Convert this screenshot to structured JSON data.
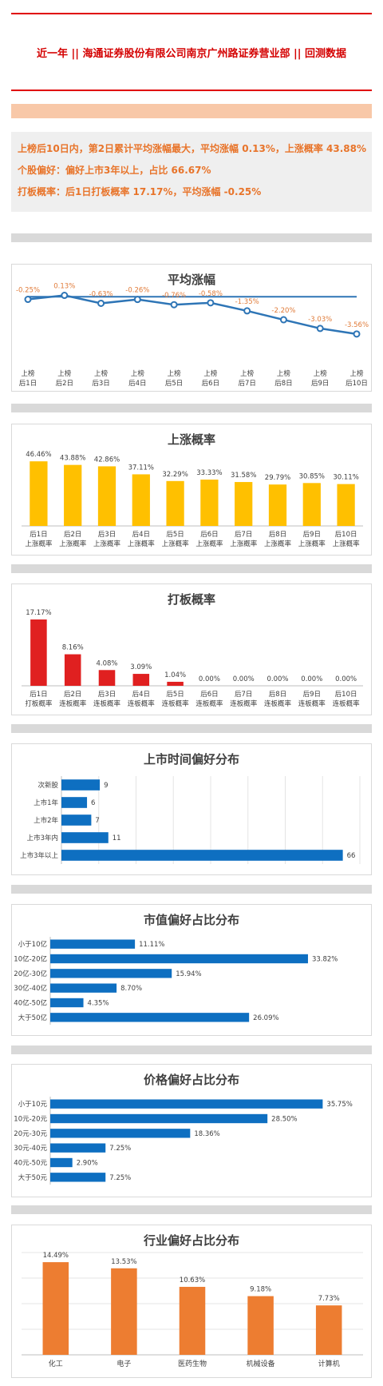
{
  "header": {
    "title": "近一年  ||  海通证券股份有限公司南京广州路证券营业部  ||  回测数据"
  },
  "summary": {
    "line1": "上榜后10日内，第2日累计平均涨幅最大，平均涨幅 0.13%，上涨概率 43.88%",
    "line2": "个股偏好：偏好上市3年以上，占比 66.67%",
    "line3": "打板概率：后1日打板概率 17.17%，平均涨幅 -0.25%"
  },
  "colors": {
    "header_red": "#e00000",
    "summary_orange": "#e8742a",
    "line_blue": "#2e75b6",
    "bar_yellow": "#ffc000",
    "bar_red": "#e02020",
    "bar_blue": "#0e6fc1",
    "bar_orange": "#ed7d31",
    "label_orange": "#e07b39"
  },
  "chart_data": [
    {
      "id": "avg",
      "type": "line",
      "title": "平均涨幅",
      "categories": [
        [
          "上榜",
          "后1日"
        ],
        [
          "上榜",
          "后2日"
        ],
        [
          "上榜",
          "后3日"
        ],
        [
          "上榜",
          "后4日"
        ],
        [
          "上榜",
          "后5日"
        ],
        [
          "上榜",
          "后6日"
        ],
        [
          "上榜",
          "后7日"
        ],
        [
          "上榜",
          "后8日"
        ],
        [
          "上榜",
          "后9日"
        ],
        [
          "上榜",
          "后10日"
        ]
      ],
      "values": [
        -0.25,
        0.13,
        -0.63,
        -0.26,
        -0.76,
        -0.58,
        -1.35,
        -2.2,
        -3.03,
        -3.56
      ],
      "labels": [
        "-0.25%",
        "0.13%",
        "-0.63%",
        "-0.26%",
        "-0.76%",
        "-0.58%",
        "-1.35%",
        "-2.20%",
        "-3.03%",
        "-3.56%"
      ],
      "ylim": [
        -3.8,
        0.4
      ]
    },
    {
      "id": "up",
      "type": "bar",
      "title": "上涨概率",
      "categories": [
        [
          "后1日",
          "上涨概率"
        ],
        [
          "后2日",
          "上涨概率"
        ],
        [
          "后3日",
          "上涨概率"
        ],
        [
          "后4日",
          "上涨概率"
        ],
        [
          "后5日",
          "上涨概率"
        ],
        [
          "后6日",
          "上涨概率"
        ],
        [
          "后7日",
          "上涨概率"
        ],
        [
          "后8日",
          "上涨概率"
        ],
        [
          "后9日",
          "上涨概率"
        ],
        [
          "后10日",
          "上涨概率"
        ]
      ],
      "values": [
        46.46,
        43.88,
        42.86,
        37.11,
        32.29,
        33.33,
        31.58,
        29.79,
        30.85,
        30.11
      ],
      "labels": [
        "46.46%",
        "43.88%",
        "42.86%",
        "37.11%",
        "32.29%",
        "33.33%",
        "31.58%",
        "29.79%",
        "30.85%",
        "30.11%"
      ],
      "ylim": [
        0,
        50
      ]
    },
    {
      "id": "limit",
      "type": "bar",
      "title": "打板概率",
      "categories": [
        [
          "后1日",
          "打板概率"
        ],
        [
          "后2日",
          "连板概率"
        ],
        [
          "后3日",
          "连板概率"
        ],
        [
          "后4日",
          "连板概率"
        ],
        [
          "后5日",
          "连板概率"
        ],
        [
          "后6日",
          "连板概率"
        ],
        [
          "后7日",
          "连板概率"
        ],
        [
          "后8日",
          "连板概率"
        ],
        [
          "后9日",
          "连板概率"
        ],
        [
          "后10日",
          "连板概率"
        ]
      ],
      "values": [
        17.17,
        8.16,
        4.08,
        3.09,
        1.04,
        0,
        0,
        0,
        0,
        0
      ],
      "labels": [
        "17.17%",
        "8.16%",
        "4.08%",
        "3.09%",
        "1.04%",
        "0.00%",
        "0.00%",
        "0.00%",
        "0.00%",
        "0.00%"
      ],
      "ylim": [
        0,
        18
      ]
    },
    {
      "id": "listing",
      "type": "hbar",
      "title": "上市时间偏好分布",
      "categories": [
        "次新股",
        "上市1年",
        "上市2年",
        "上市3年内",
        "上市3年以上"
      ],
      "values": [
        9,
        6,
        7,
        11,
        66
      ],
      "labels": [
        "9",
        "6",
        "7",
        "11",
        "66"
      ],
      "xlim": [
        0,
        70
      ],
      "grid": true
    },
    {
      "id": "mcap",
      "type": "hbar",
      "title": "市值偏好占比分布",
      "categories": [
        "小于10亿",
        "10亿-20亿",
        "20亿-30亿",
        "30亿-40亿",
        "40亿-50亿",
        "大于50亿"
      ],
      "values": [
        11.11,
        33.82,
        15.94,
        8.7,
        4.35,
        26.09
      ],
      "labels": [
        "11.11%",
        "33.82%",
        "15.94%",
        "8.70%",
        "4.35%",
        "26.09%"
      ],
      "xlim": [
        0,
        40
      ],
      "grid": false
    },
    {
      "id": "price",
      "type": "hbar",
      "title": "价格偏好占比分布",
      "categories": [
        "小于10元",
        "10元-20元",
        "20元-30元",
        "30元-40元",
        "40元-50元",
        "大于50元"
      ],
      "values": [
        35.75,
        28.5,
        18.36,
        7.25,
        2.9,
        7.25
      ],
      "labels": [
        "35.75%",
        "28.50%",
        "18.36%",
        "7.25%",
        "2.90%",
        "7.25%"
      ],
      "xlim": [
        0,
        40
      ],
      "grid": false
    },
    {
      "id": "industry",
      "type": "bar",
      "title": "行业偏好占比分布",
      "categories": [
        "化工",
        "电子",
        "医药生物",
        "机械设备",
        "计算机"
      ],
      "values": [
        14.49,
        13.53,
        10.63,
        9.18,
        7.73
      ],
      "labels": [
        "14.49%",
        "13.53%",
        "10.63%",
        "9.18%",
        "7.73%"
      ],
      "ylim": [
        0,
        16
      ],
      "grid": true
    }
  ]
}
